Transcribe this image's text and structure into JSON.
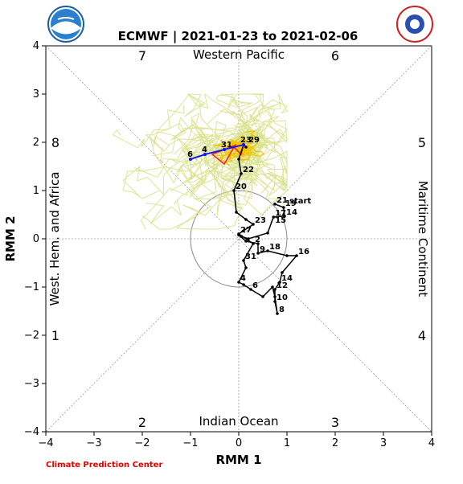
{
  "chart_data": {
    "type": "line",
    "title": "ECMWF | 2021-01-23 to 2021-02-06",
    "xlabel": "RMM 1",
    "ylabel": "RMM 2",
    "xlim": [
      -4,
      4
    ],
    "ylim": [
      -4,
      4
    ],
    "xticks": [
      -4,
      -3,
      -2,
      -1,
      0,
      1,
      2,
      3,
      4
    ],
    "yticks": [
      -4,
      -3,
      -2,
      -1,
      0,
      1,
      2,
      3,
      4
    ],
    "tick_labels": [
      "−4",
      "−3",
      "−2",
      "−1",
      "0",
      "1",
      "2",
      "3",
      "4"
    ],
    "unit_circle_radius": 1,
    "phase_labels": [
      {
        "text": "7",
        "x": -2.0,
        "y": 3.8
      },
      {
        "text": "6",
        "x": 2.0,
        "y": 3.8
      },
      {
        "text": "8",
        "x": -3.8,
        "y": 2.0
      },
      {
        "text": "5",
        "x": 3.8,
        "y": 2.0
      },
      {
        "text": "1",
        "x": -3.8,
        "y": -2.0
      },
      {
        "text": "4",
        "x": 3.8,
        "y": -2.0
      },
      {
        "text": "2",
        "x": -2.0,
        "y": -3.8
      },
      {
        "text": "3",
        "x": 2.0,
        "y": -3.8
      }
    ],
    "region_labels": {
      "top": "Western Pacific",
      "bottom": "Indian Ocean",
      "left": "West. Hem. and Africa",
      "right": "Maritime Continent"
    },
    "start_label": "start",
    "observed": {
      "points": [
        [
          0.75,
          0.72
        ],
        [
          0.93,
          0.65
        ],
        [
          0.95,
          0.47
        ],
        [
          0.72,
          0.45
        ],
        [
          0.6,
          0.12
        ],
        [
          0.2,
          0.0
        ],
        [
          0.05,
          0.05
        ],
        [
          0.0,
          0.08
        ],
        [
          0.15,
          -0.05
        ],
        [
          0.4,
          -0.1
        ],
        [
          0.4,
          -0.3
        ],
        [
          0.6,
          -0.25
        ],
        [
          1.0,
          -0.35
        ],
        [
          1.2,
          -0.35
        ],
        [
          0.9,
          -0.7
        ],
        [
          0.85,
          -0.9
        ],
        [
          0.75,
          -1.05
        ],
        [
          0.75,
          -1.3
        ],
        [
          0.8,
          -1.55
        ],
        [
          0.75,
          -1.2
        ],
        [
          0.7,
          -1.0
        ],
        [
          0.5,
          -1.2
        ],
        [
          0.25,
          -1.05
        ],
        [
          0.1,
          -0.95
        ],
        [
          0.0,
          -0.9
        ],
        [
          0.15,
          -0.6
        ],
        [
          0.1,
          -0.45
        ],
        [
          0.3,
          -0.1
        ],
        [
          0.0,
          0.1
        ],
        [
          0.3,
          0.3
        ],
        [
          0.15,
          0.4
        ],
        [
          -0.05,
          0.55
        ],
        [
          -0.1,
          1.0
        ],
        [
          0.05,
          1.35
        ],
        [
          0.0,
          1.65
        ],
        [
          0.1,
          1.95
        ],
        [
          0.15,
          1.9
        ]
      ],
      "labels": [
        {
          "text": "21",
          "i": 0
        },
        {
          "text": "19",
          "i": 1
        },
        {
          "text": "14",
          "i": 2
        },
        {
          "text": "17",
          "i": 3
        },
        {
          "text": "15",
          "i": 3
        },
        {
          "text": "20",
          "i": 32
        },
        {
          "text": "23",
          "i": 29
        },
        {
          "text": "27",
          "i": 28
        },
        {
          "text": "2",
          "i": 27
        },
        {
          "text": "9",
          "i": 10
        },
        {
          "text": "18",
          "i": 11
        },
        {
          "text": "16",
          "i": 13
        },
        {
          "text": "31",
          "i": 26
        },
        {
          "text": "14",
          "i": 15
        },
        {
          "text": "4",
          "i": 24
        },
        {
          "text": "12",
          "i": 16
        },
        {
          "text": "10",
          "i": 17
        },
        {
          "text": "6",
          "i": 22
        },
        {
          "text": "8",
          "i": 18
        },
        {
          "text": "22",
          "i": 33
        }
      ]
    },
    "ensemble_mean": {
      "points": [
        [
          0.1,
          1.95
        ],
        [
          -0.3,
          1.85
        ],
        [
          -0.7,
          1.75
        ],
        [
          -1.0,
          1.65
        ]
      ],
      "labels": [
        {
          "text": "23",
          "i": 0
        },
        {
          "text": "29",
          "i": 0
        },
        {
          "text": "31",
          "i": 1
        },
        {
          "text": "4",
          "i": 2
        },
        {
          "text": "6",
          "i": 3
        }
      ]
    },
    "colors": {
      "observed": "#000000",
      "ensemble_member": "#d8e28c",
      "ensemble_dense": "#f2c400",
      "ensemble_center": "#e06000",
      "ensemble_mean": "#1010ff",
      "ensemble_range": "#ff2020",
      "circle": "#888888",
      "diagonal": "#888888",
      "credit": "#e00000"
    },
    "grid": false,
    "credit": "Climate Prediction Center",
    "logo_left": "NOAA",
    "logo_right": "NATIONAL WEATHER SERVICE"
  }
}
